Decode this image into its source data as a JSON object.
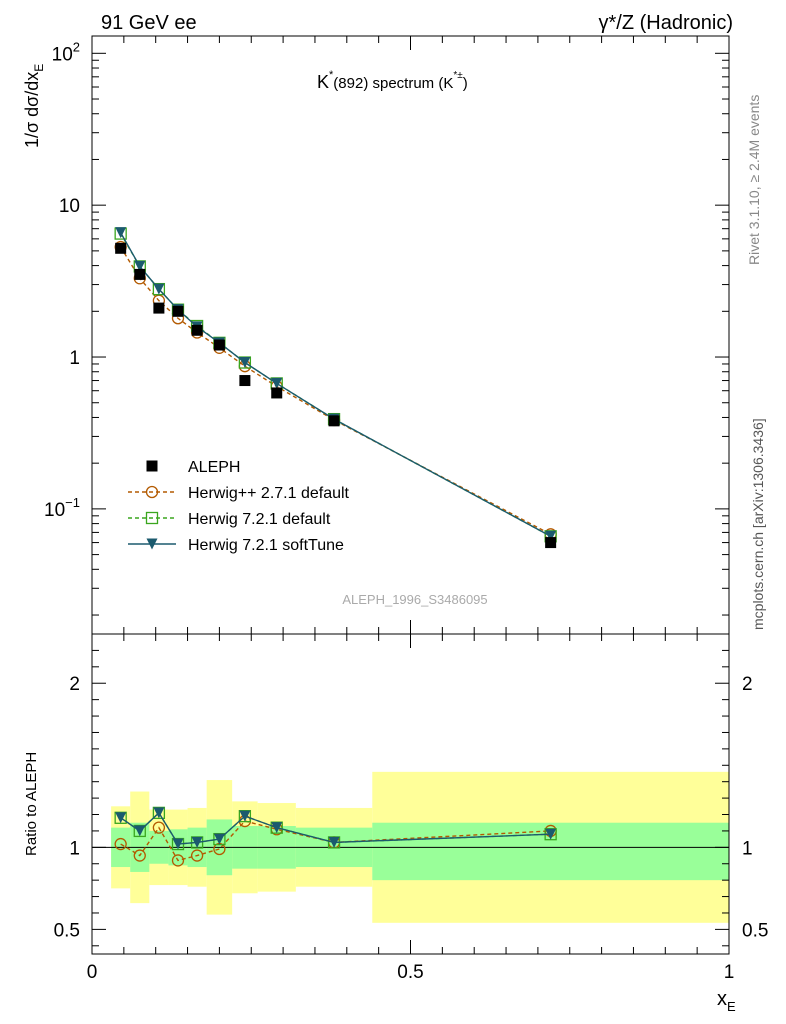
{
  "header": {
    "left": "91 GeV ee",
    "right": "γ*/Z (Hadronic)"
  },
  "side_text": {
    "rivet": "Rivet 3.1.10, ≥ 2.4M events",
    "mcplots": "mcplots.cern.ch [arXiv:1306.3436]"
  },
  "colors": {
    "data": "#000000",
    "herwigpp": "#b35a00",
    "herwig721": "#3aa61e",
    "softtune": "#1b5a6e",
    "band_inner": "#99ff99",
    "band_outer": "#ffff99"
  },
  "chart_data": [
    {
      "type": "line",
      "panel": "main",
      "title": {
        "main": "K",
        "sup": "*",
        "mid": "(892) spectrum (K",
        "sup2": "*±",
        "end": ")"
      },
      "analysis_label": "ALEPH_1996_S3486095",
      "ylabel": "1/σ dσ/dx",
      "ylabel_sub": "E",
      "yscale": "log",
      "ylim": [
        0.015,
        130
      ],
      "xlim": [
        0,
        1
      ],
      "yticks": [
        {
          "value": 100,
          "base": "10",
          "exp": "2"
        },
        {
          "value": 10,
          "base": "10",
          "exp": ""
        },
        {
          "value": 1,
          "base": "1",
          "exp": ""
        },
        {
          "value": 0.1,
          "base": "10",
          "exp": "−1"
        }
      ],
      "x": [
        0.045,
        0.075,
        0.105,
        0.135,
        0.165,
        0.2,
        0.24,
        0.29,
        0.38,
        0.72
      ],
      "series": [
        {
          "name": "ALEPH",
          "key": "data",
          "marker": "square-filled",
          "values": [
            5.2,
            3.5,
            2.1,
            2.0,
            1.5,
            1.2,
            0.7,
            0.58,
            0.38,
            0.06
          ]
        },
        {
          "name": "Herwig++ 2.7.1 default",
          "key": "herwigpp",
          "marker": "circle-open",
          "dash": "4,3",
          "values": [
            5.3,
            3.3,
            2.35,
            1.8,
            1.45,
            1.15,
            0.87,
            0.64,
            0.385,
            0.068
          ]
        },
        {
          "name": "Herwig 7.2.1 default",
          "key": "herwig721",
          "marker": "square-open",
          "dash": "4,3",
          "values": [
            6.5,
            3.95,
            2.8,
            2.05,
            1.6,
            1.24,
            0.92,
            0.67,
            0.39,
            0.066
          ]
        },
        {
          "name": "Herwig 7.2.1 softTune",
          "key": "softtune",
          "marker": "triangle-down-filled",
          "values": [
            6.6,
            3.95,
            2.8,
            2.05,
            1.58,
            1.24,
            0.92,
            0.67,
            0.39,
            0.066
          ]
        }
      ],
      "legend_position": "lower-left"
    },
    {
      "type": "line",
      "panel": "ratio",
      "ylabel": "Ratio to ALEPH",
      "xlabel": "x",
      "xlabel_sub": "E",
      "ylim": [
        0.35,
        2.3
      ],
      "yticks": [
        0.5,
        1,
        2
      ],
      "ytick_labels": [
        "0.5",
        "1",
        "2"
      ],
      "xticks": [
        0,
        0.5,
        1
      ],
      "xtick_labels": [
        "0",
        "0.5",
        "1"
      ],
      "bands": [
        {
          "x0": 0.03,
          "x1": 0.06,
          "inner": [
            0.88,
            1.12
          ],
          "outer": [
            0.75,
            1.25
          ]
        },
        {
          "x0": 0.06,
          "x1": 0.09,
          "inner": [
            0.85,
            1.15
          ],
          "outer": [
            0.66,
            1.34
          ]
        },
        {
          "x0": 0.09,
          "x1": 0.12,
          "inner": [
            0.9,
            1.1
          ],
          "outer": [
            0.77,
            1.23
          ]
        },
        {
          "x0": 0.12,
          "x1": 0.15,
          "inner": [
            0.89,
            1.11
          ],
          "outer": [
            0.77,
            1.23
          ]
        },
        {
          "x0": 0.15,
          "x1": 0.18,
          "inner": [
            0.88,
            1.12
          ],
          "outer": [
            0.76,
            1.24
          ]
        },
        {
          "x0": 0.18,
          "x1": 0.22,
          "inner": [
            0.83,
            1.17
          ],
          "outer": [
            0.59,
            1.41
          ]
        },
        {
          "x0": 0.22,
          "x1": 0.26,
          "inner": [
            0.87,
            1.13
          ],
          "outer": [
            0.72,
            1.28
          ]
        },
        {
          "x0": 0.26,
          "x1": 0.32,
          "inner": [
            0.87,
            1.13
          ],
          "outer": [
            0.73,
            1.27
          ]
        },
        {
          "x0": 0.32,
          "x1": 0.44,
          "inner": [
            0.88,
            1.12
          ],
          "outer": [
            0.76,
            1.24
          ]
        },
        {
          "x0": 0.44,
          "x1": 1.0,
          "inner": [
            0.8,
            1.15
          ],
          "outer": [
            0.54,
            1.46
          ]
        }
      ],
      "x": [
        0.045,
        0.075,
        0.105,
        0.135,
        0.165,
        0.2,
        0.24,
        0.29,
        0.38,
        0.72
      ],
      "series": [
        {
          "name": "Herwig++ 2.7.1 default",
          "key": "herwigpp",
          "marker": "circle-open",
          "dash": "4,3",
          "values": [
            1.02,
            0.95,
            1.12,
            0.92,
            0.95,
            0.99,
            1.16,
            1.11,
            1.03,
            1.1
          ]
        },
        {
          "name": "Herwig 7.2.1 default",
          "key": "herwig721",
          "marker": "square-open",
          "dash": "4,3",
          "values": [
            1.18,
            1.1,
            1.21,
            1.02,
            1.03,
            1.05,
            1.19,
            1.12,
            1.03,
            1.08
          ]
        },
        {
          "name": "Herwig 7.2.1 softTune",
          "key": "softtune",
          "marker": "triangle-down-filled",
          "values": [
            1.18,
            1.1,
            1.21,
            1.02,
            1.03,
            1.05,
            1.19,
            1.12,
            1.03,
            1.08
          ]
        }
      ]
    }
  ]
}
